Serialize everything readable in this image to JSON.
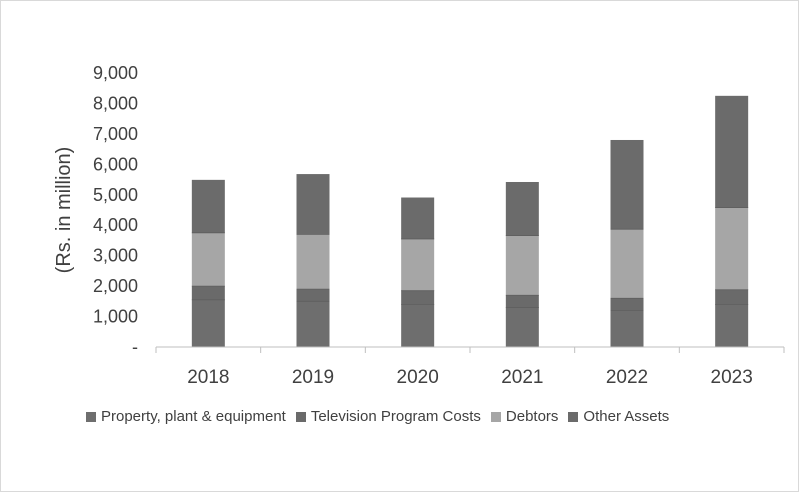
{
  "chart_data": {
    "type": "bar",
    "stacked": true,
    "ylabel": "(Rs. in million)",
    "xlabel": "",
    "ylim": [
      0,
      9000
    ],
    "yticks": [
      0,
      1000,
      2000,
      3000,
      4000,
      5000,
      6000,
      7000,
      8000,
      9000
    ],
    "ytick_labels": [
      "-",
      "1,000",
      "2,000",
      "3,000",
      "4,000",
      "5,000",
      "6,000",
      "7,000",
      "8,000",
      "9,000"
    ],
    "categories": [
      "2018",
      "2019",
      "2020",
      "2021",
      "2022",
      "2023"
    ],
    "series": [
      {
        "name": "Property, plant & equipment",
        "color": "#6e6e6e",
        "values": [
          1550,
          1500,
          1400,
          1300,
          1200,
          1400
        ]
      },
      {
        "name": "Television Program Costs",
        "color": "#6a6a6a",
        "values": [
          450,
          400,
          450,
          400,
          400,
          480
        ]
      },
      {
        "name": "Debtors",
        "color": "#a6a6a6",
        "values": [
          1750,
          1800,
          1700,
          1960,
          2270,
          2700
        ]
      },
      {
        "name": "Other Assets",
        "color": "#6b6b6b",
        "values": [
          1740,
          1980,
          1360,
          1760,
          2930,
          3670
        ]
      }
    ],
    "grid": false,
    "legend_position": "bottom"
  }
}
